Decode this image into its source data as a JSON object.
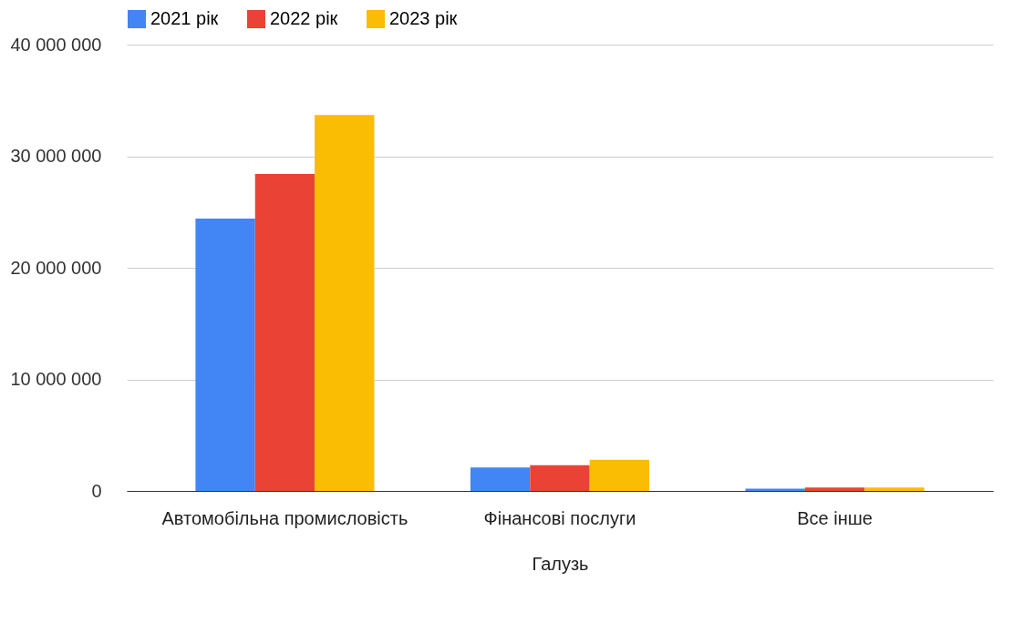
{
  "chart_data": {
    "type": "bar",
    "xlabel": "Галузь",
    "categories": [
      "Автомобільна промисловість",
      "Фінансові послуги",
      "Все інше"
    ],
    "series": [
      {
        "name": "2021 рік",
        "color": "#4285f4",
        "values": [
          24400000,
          2100000,
          200000
        ]
      },
      {
        "name": "2022 рік",
        "color": "#ea4335",
        "values": [
          28400000,
          2300000,
          300000
        ]
      },
      {
        "name": "2023 рік",
        "color": "#fbbc04",
        "values": [
          33700000,
          2800000,
          300000
        ]
      }
    ],
    "ylim": [
      0,
      40000000
    ],
    "yticks": [
      {
        "value": 0,
        "label": "0"
      },
      {
        "value": 10000000,
        "label": "10 000 000"
      },
      {
        "value": 20000000,
        "label": "20 000 000"
      },
      {
        "value": 30000000,
        "label": "30 000 000"
      },
      {
        "value": 40000000,
        "label": "40 000 000"
      }
    ],
    "grid": "y",
    "legend": "top"
  }
}
